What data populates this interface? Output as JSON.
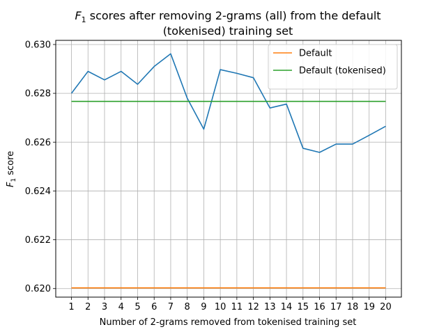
{
  "chart_data": {
    "type": "line",
    "title_prefix": "F",
    "title_subscript": "1",
    "title_line1_rest": " scores after removing 2-grams (all) from the default",
    "title_line2": "(tokenised) training set",
    "xlabel": "Number of 2-grams removed from tokenised training set",
    "ylabel_prefix": "F",
    "ylabel_subscript": "1",
    "ylabel_rest": " score",
    "x": [
      1,
      2,
      3,
      4,
      5,
      6,
      7,
      8,
      9,
      10,
      11,
      12,
      13,
      14,
      15,
      16,
      17,
      18,
      19,
      20
    ],
    "xlim": [
      0.05,
      20.95
    ],
    "ylim": [
      0.61965,
      0.63017
    ],
    "yticks": [
      0.62,
      0.622,
      0.624,
      0.626,
      0.628,
      0.63
    ],
    "ytick_labels": [
      "0.620",
      "0.622",
      "0.624",
      "0.626",
      "0.628",
      "0.630"
    ],
    "grid": true,
    "legend_position": "top-right",
    "series": [
      {
        "values": [
          0.628,
          0.6289,
          0.62855,
          0.6289,
          0.62837,
          0.6291,
          0.62962,
          0.6278,
          0.62653,
          0.62897,
          0.62882,
          0.62864,
          0.6274,
          0.62756,
          0.62575,
          0.62558,
          0.62592,
          0.62592,
          0.62628,
          0.62665
        ],
        "color": "#1f77b4"
      },
      {
        "name": "Default",
        "values": [
          0.62003,
          0.62003,
          0.62003,
          0.62003,
          0.62003,
          0.62003,
          0.62003,
          0.62003,
          0.62003,
          0.62003,
          0.62003,
          0.62003,
          0.62003,
          0.62003,
          0.62003,
          0.62003,
          0.62003,
          0.62003,
          0.62003,
          0.62003
        ],
        "color": "#ff7f0e"
      },
      {
        "name": "Default (tokenised)",
        "values": [
          0.62767,
          0.62767,
          0.62767,
          0.62767,
          0.62767,
          0.62767,
          0.62767,
          0.62767,
          0.62767,
          0.62767,
          0.62767,
          0.62767,
          0.62767,
          0.62767,
          0.62767,
          0.62767,
          0.62767,
          0.62767,
          0.62767,
          0.62767
        ],
        "color": "#2ca02c"
      }
    ]
  }
}
